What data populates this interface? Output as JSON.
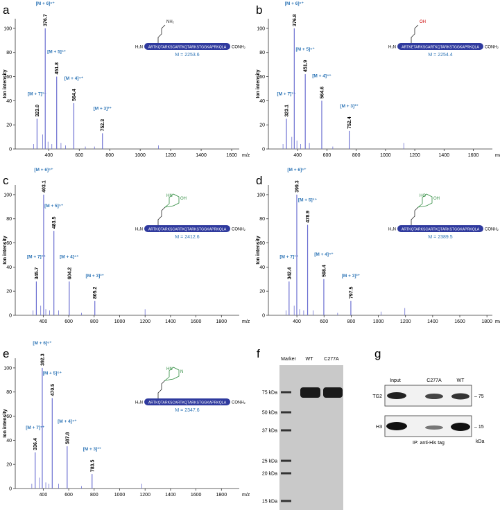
{
  "panel_labels": [
    "a",
    "b",
    "c",
    "d",
    "e",
    "f",
    "g"
  ],
  "chart_data": [
    {
      "type": "stem",
      "ylabel": "Ion intensity",
      "xlabel": "m/z",
      "color": "#6b6fd1",
      "label_color": "#2e75b6",
      "xlim": [
        180,
        1650
      ],
      "xticks": [
        400,
        600,
        800,
        1000,
        1200,
        1400,
        1600
      ],
      "ylim": [
        0,
        108
      ],
      "yticks": [
        0,
        20,
        40,
        60,
        80,
        100
      ],
      "x": [
        323.0,
        376.7,
        451.8,
        564.4,
        752.3
      ],
      "values": [
        25,
        100,
        60,
        38,
        13
      ],
      "peak_labels": [
        "323.0",
        "376.7",
        "451.8",
        "564.4",
        "752.3"
      ],
      "ions": [
        "[M + 7]⁷⁺",
        "[M + 6]⁶⁺",
        "[M + 5]⁵⁺",
        "[M + 4]⁴⁺",
        "[M + 3]³⁺"
      ],
      "noise_x": [
        300,
        360,
        395,
        420,
        480,
        510,
        640,
        700,
        1120
      ],
      "noise_values": [
        4,
        12,
        6,
        4,
        5,
        3,
        2,
        2,
        3
      ],
      "peptide": {
        "sequence": "ARTKQTARKSCARTKQTARKSTGGKAPRKQLA",
        "n_term": "H₂N",
        "c_term": "CONH₂",
        "mass": "M = 2253.6"
      },
      "structure_labels": [
        "NH₂"
      ]
    },
    {
      "type": "stem",
      "ylabel": "Ion intensity",
      "xlabel": "m/z",
      "color": "#6b6fd1",
      "label_color": "#2e75b6",
      "xlim": [
        200,
        1730
      ],
      "xticks": [
        400,
        600,
        800,
        1000,
        1200,
        1400,
        1600
      ],
      "ylim": [
        0,
        108
      ],
      "yticks": [
        0,
        20,
        40,
        60,
        80,
        100
      ],
      "x": [
        323.1,
        376.8,
        451.9,
        564.6,
        752.4
      ],
      "values": [
        25,
        100,
        62,
        40,
        15
      ],
      "peak_labels": [
        "323.1",
        "376.8",
        "451.9",
        "564.6",
        "752.4"
      ],
      "ions": [
        "[M + 7]⁷⁺",
        "[M + 6]⁶⁺",
        "[M + 5]⁵⁺",
        "[M + 4]⁴⁺",
        "[M + 3]³⁺"
      ],
      "noise_x": [
        300,
        360,
        395,
        420,
        480,
        640,
        1125
      ],
      "noise_values": [
        4,
        10,
        7,
        4,
        5,
        2,
        5
      ],
      "peptide": {
        "sequence": "ARTKETARKSCARTKQTARKSTGGKAPRKQLA",
        "n_term": "H₂N",
        "c_term": "CONH₂",
        "mass": "M = 2254.4"
      },
      "structure_labels": [
        "OH"
      ]
    },
    {
      "type": "stem",
      "ylabel": "Ion intensity",
      "xlabel": "m/z",
      "color": "#6b6fd1",
      "label_color": "#2e75b6",
      "xlim": [
        180,
        1940
      ],
      "xticks": [
        400,
        600,
        800,
        1000,
        1200,
        1400,
        1600,
        1800
      ],
      "ylim": [
        0,
        108
      ],
      "yticks": [
        0,
        20,
        40,
        60,
        80,
        100
      ],
      "x": [
        345.7,
        403.1,
        483.5,
        604.2,
        805.2
      ],
      "values": [
        28,
        100,
        70,
        28,
        12
      ],
      "peak_labels": [
        "345.7",
        "403.1",
        "483.5",
        "604.2",
        "805.2"
      ],
      "ions": [
        "[M + 7]⁷⁺",
        "[M + 6]⁶⁺",
        "[M + 5]⁵⁺",
        "[M + 4]⁴⁺",
        "[M + 3]³⁺"
      ],
      "noise_x": [
        320,
        380,
        420,
        450,
        520,
        700,
        1200
      ],
      "noise_values": [
        4,
        8,
        5,
        4,
        4,
        2,
        5
      ],
      "peptide": {
        "sequence": "ARTKQTARKSCARTKQTARKSTGGKAPRKQLA",
        "n_term": "H₂N",
        "c_term": "CONH₂",
        "mass": "M = 2412.6"
      },
      "structure_labels": [
        "HN",
        "OH"
      ]
    },
    {
      "type": "stem",
      "ylabel": "Ion intensity",
      "xlabel": "m/z",
      "color": "#6b6fd1",
      "label_color": "#2e75b6",
      "xlim": [
        190,
        1840
      ],
      "xticks": [
        400,
        600,
        800,
        1000,
        1200,
        1400,
        1600,
        1800
      ],
      "ylim": [
        0,
        108
      ],
      "yticks": [
        0,
        20,
        40,
        60,
        80,
        100
      ],
      "x": [
        342.4,
        399.3,
        478.9,
        598.4,
        797.5
      ],
      "values": [
        28,
        100,
        75,
        30,
        12
      ],
      "peak_labels": [
        "342.4",
        "399.3",
        "478.9",
        "598.4",
        "797.5"
      ],
      "ions": [
        "[M + 7]⁷⁺",
        "[M + 6]⁶⁺",
        "[M + 5]⁵⁺",
        "[M + 4]⁴⁺",
        "[M + 3]³⁺"
      ],
      "noise_x": [
        320,
        380,
        420,
        450,
        520,
        700,
        1020,
        1195
      ],
      "noise_values": [
        4,
        8,
        5,
        4,
        4,
        2,
        3,
        6
      ],
      "peptide": {
        "sequence": "ARTKQTARKSCARTKQTARKSTGGKAPRKQLA",
        "n_term": "H₂N",
        "c_term": "CONH₂",
        "mass": "M = 2389.5"
      },
      "structure_labels": [
        "HO",
        "OH"
      ]
    },
    {
      "type": "stem",
      "ylabel": "Ion intensity",
      "xlabel": "m/z",
      "color": "#6b6fd1",
      "label_color": "#2e75b6",
      "xlim": [
        180,
        1940
      ],
      "xticks": [
        400,
        600,
        800,
        1000,
        1200,
        1400,
        1600,
        1800
      ],
      "ylim": [
        0,
        108
      ],
      "yticks": [
        0,
        20,
        40,
        60,
        80,
        100
      ],
      "x": [
        336.4,
        392.3,
        470.5,
        587.8,
        783.5
      ],
      "values": [
        30,
        100,
        75,
        35,
        12
      ],
      "peak_labels": [
        "336.4",
        "392.3",
        "470.5",
        "587.8",
        "783.5"
      ],
      "ions": [
        "[M + 7]⁷⁺",
        "[M + 6]⁶⁺",
        "[M + 5]⁵⁺",
        "[M + 4]⁴⁺",
        "[M + 3]³⁺"
      ],
      "noise_x": [
        310,
        370,
        420,
        445,
        520,
        700,
        1175
      ],
      "noise_values": [
        4,
        9,
        5,
        4,
        4,
        2,
        4
      ],
      "peptide": {
        "sequence": "ARTKQTARKSCARTKQTARKSTGGKAPRKQLA",
        "n_term": "H₂N",
        "c_term": "CONH₂",
        "mass": "M = 2347.6"
      },
      "structure_labels": [
        "HN",
        "N"
      ]
    }
  ],
  "gel": {
    "lanes": [
      "Marker",
      "WT",
      "C277A"
    ],
    "markers": [
      "75 kDa",
      "50 kDa",
      "37 kDa",
      "25 kDa",
      "20 kDa",
      "15 kDa"
    ]
  },
  "blot": {
    "lanes": [
      "Input",
      "C277A",
      "WT"
    ],
    "rows": [
      "TG2",
      "H3"
    ],
    "sizes": [
      "– 75",
      "– 15"
    ],
    "caption": "IP: anti-His tag",
    "unit": "kDa"
  }
}
